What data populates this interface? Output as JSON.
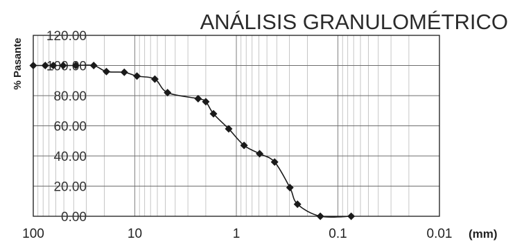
{
  "chart_data": {
    "type": "line",
    "title": "ANÁLISIS GRANULOMÉTRICO",
    "ylabel": "% Pasante",
    "xlabel": "",
    "x_unit": "(mm)",
    "x_scale": "log",
    "x_reversed": true,
    "xlim": [
      100,
      0.01
    ],
    "ylim": [
      0,
      120
    ],
    "grid": true,
    "legend": "none",
    "yticks": [
      "0.00",
      "20.00",
      "40.00",
      "60.00",
      "80.00",
      "100.00",
      "120.00"
    ],
    "xticks": [
      "100",
      "10",
      "1",
      "0.1",
      "0.01"
    ],
    "series": [
      {
        "color": "#1a1a1a",
        "x": [
          100,
          76.2,
          63.5,
          50.8,
          38.1,
          25.4,
          19.05,
          12.7,
          9.525,
          6.35,
          4.76,
          2.38,
          2.0,
          1.68,
          1.19,
          0.84,
          0.59,
          0.42,
          0.297,
          0.25,
          0.149,
          0.074
        ],
        "y": [
          100,
          100,
          100,
          100,
          100,
          100,
          96,
          95.5,
          93,
          91,
          82,
          78,
          76,
          68,
          58,
          47,
          41.5,
          36,
          19,
          8,
          0,
          0
        ]
      }
    ]
  }
}
